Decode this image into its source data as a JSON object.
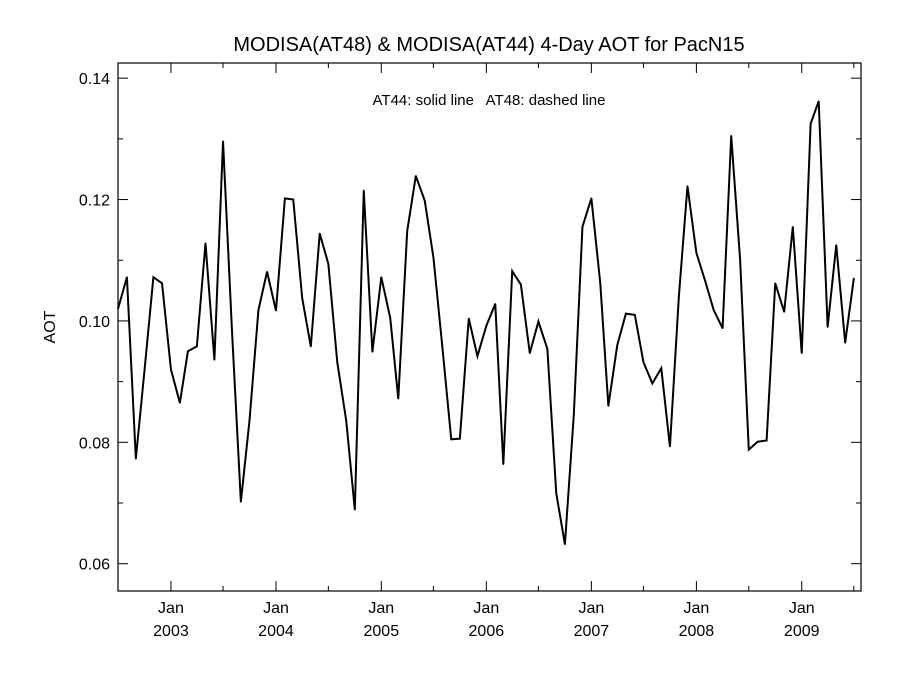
{
  "chart_data": {
    "type": "line",
    "title": "MODISA(AT48) & MODISA(AT44) 4-Day AOT for PacN15",
    "annotation": "AT44: solid line   AT48: dashed line",
    "xlabel": "",
    "ylabel": "AOT",
    "ylim": [
      0.0555,
      0.1425
    ],
    "xlim": [
      "2002-07-01",
      "2009-07-26"
    ],
    "yticks": [
      0.06,
      0.08,
      0.1,
      0.12,
      0.14
    ],
    "ytick_labels": [
      "0.06",
      "0.08",
      "0.10",
      "0.12",
      "0.14"
    ],
    "xtick_months": [
      "Jan",
      "Jan",
      "Jan",
      "Jan",
      "Jan",
      "Jan",
      "Jan"
    ],
    "xtick_years": [
      "2003",
      "2004",
      "2005",
      "2006",
      "2007",
      "2008",
      "2009"
    ],
    "xtick_dates": [
      "2003-01-01",
      "2004-01-01",
      "2005-01-01",
      "2006-01-01",
      "2007-01-01",
      "2008-01-01",
      "2009-01-01"
    ],
    "grid": false,
    "series": [
      {
        "name": "AT44",
        "style": "solid",
        "color": "#000000",
        "points": [
          [
            "2002-07-01",
            0.102
          ],
          [
            "2002-08-01",
            0.1072
          ],
          [
            "2002-09-01",
            0.0773
          ],
          [
            "2002-10-01",
            0.0918
          ],
          [
            "2002-11-01",
            0.1072
          ],
          [
            "2002-12-01",
            0.1062
          ],
          [
            "2003-01-01",
            0.092
          ],
          [
            "2003-02-01",
            0.0865
          ],
          [
            "2003-03-01",
            0.095
          ],
          [
            "2003-04-01",
            0.0958
          ],
          [
            "2003-05-01",
            0.1128
          ],
          [
            "2003-06-01",
            0.0936
          ],
          [
            "2003-07-01",
            0.1296
          ],
          [
            "2003-08-01",
            0.0985
          ],
          [
            "2003-09-01",
            0.0702
          ],
          [
            "2003-10-01",
            0.0836
          ],
          [
            "2003-11-01",
            0.1018
          ],
          [
            "2003-12-01",
            0.1081
          ],
          [
            "2004-01-01",
            0.1017
          ],
          [
            "2004-02-01",
            0.1202
          ],
          [
            "2004-03-01",
            0.12
          ],
          [
            "2004-04-01",
            0.1038
          ],
          [
            "2004-05-01",
            0.0958
          ],
          [
            "2004-06-01",
            0.1144
          ],
          [
            "2004-07-01",
            0.1094
          ],
          [
            "2004-08-01",
            0.0932
          ],
          [
            "2004-09-01",
            0.0836
          ],
          [
            "2004-10-01",
            0.0689
          ],
          [
            "2004-11-01",
            0.1215
          ],
          [
            "2004-12-01",
            0.0949
          ],
          [
            "2005-01-01",
            0.1072
          ],
          [
            "2005-02-01",
            0.1005
          ],
          [
            "2005-03-01",
            0.0872
          ],
          [
            "2005-04-01",
            0.1148
          ],
          [
            "2005-05-01",
            0.1239
          ],
          [
            "2005-06-01",
            0.1198
          ],
          [
            "2005-07-01",
            0.1105
          ],
          [
            "2005-08-01",
            0.0958
          ],
          [
            "2005-09-01",
            0.0805
          ],
          [
            "2005-10-01",
            0.0806
          ],
          [
            "2005-11-01",
            0.1004
          ],
          [
            "2005-12-01",
            0.0942
          ],
          [
            "2006-01-01",
            0.0992
          ],
          [
            "2006-02-01",
            0.1028
          ],
          [
            "2006-03-01",
            0.0764
          ],
          [
            "2006-04-01",
            0.1082
          ],
          [
            "2006-05-01",
            0.106
          ],
          [
            "2006-06-01",
            0.0947
          ],
          [
            "2006-07-01",
            0.0999
          ],
          [
            "2006-08-01",
            0.0954
          ],
          [
            "2006-09-01",
            0.0716
          ],
          [
            "2006-10-01",
            0.0632
          ],
          [
            "2006-11-01",
            0.0845
          ],
          [
            "2006-12-01",
            0.1155
          ],
          [
            "2007-01-01",
            0.1202
          ],
          [
            "2007-02-01",
            0.1062
          ],
          [
            "2007-03-01",
            0.086
          ],
          [
            "2007-04-01",
            0.096
          ],
          [
            "2007-05-01",
            0.1012
          ],
          [
            "2007-06-01",
            0.101
          ],
          [
            "2007-07-01",
            0.0932
          ],
          [
            "2007-08-01",
            0.0897
          ],
          [
            "2007-09-01",
            0.0922
          ],
          [
            "2007-10-01",
            0.0793
          ],
          [
            "2007-11-01",
            0.104
          ],
          [
            "2007-12-01",
            0.1222
          ],
          [
            "2008-01-01",
            0.1112
          ],
          [
            "2008-02-01",
            0.1065
          ],
          [
            "2008-03-01",
            0.1018
          ],
          [
            "2008-04-01",
            0.0988
          ],
          [
            "2008-05-01",
            0.1305
          ],
          [
            "2008-06-01",
            0.11
          ],
          [
            "2008-07-01",
            0.0788
          ],
          [
            "2008-08-01",
            0.0801
          ],
          [
            "2008-09-01",
            0.0803
          ],
          [
            "2008-10-01",
            0.1062
          ],
          [
            "2008-11-01",
            0.1015
          ],
          [
            "2008-12-01",
            0.1155
          ],
          [
            "2009-01-01",
            0.0947
          ],
          [
            "2009-02-01",
            0.1325
          ],
          [
            "2009-03-01",
            0.1362
          ],
          [
            "2009-04-01",
            0.099
          ],
          [
            "2009-05-01",
            0.1125
          ],
          [
            "2009-06-01",
            0.0964
          ],
          [
            "2009-07-01",
            0.107
          ]
        ]
      }
    ]
  }
}
